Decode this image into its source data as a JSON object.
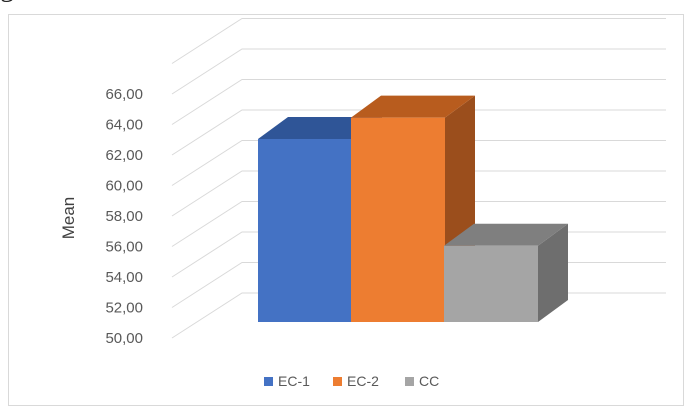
{
  "fragment_text": "g",
  "chart_data": {
    "type": "bar",
    "title": "",
    "xlabel": "",
    "ylabel": "Mean",
    "ylim": [
      50,
      66
    ],
    "yticks": [
      "50,00",
      "52,00",
      "54,00",
      "56,00",
      "58,00",
      "60,00",
      "62,00",
      "64,00",
      "66,00"
    ],
    "categories": [
      "EC-1",
      "EC-2",
      "CC"
    ],
    "values": [
      63,
      64.4,
      56
    ],
    "grid": true,
    "legend": "bottom",
    "colors": [
      "#4472c4",
      "#ed7d31",
      "#a5a5a5"
    ],
    "side_colors": [
      "#2f5597",
      "#9b4e1c",
      "#6e6e6e"
    ],
    "top_colors": [
      "#2f5597",
      "#b85c1e",
      "#7f7f7f"
    ]
  }
}
